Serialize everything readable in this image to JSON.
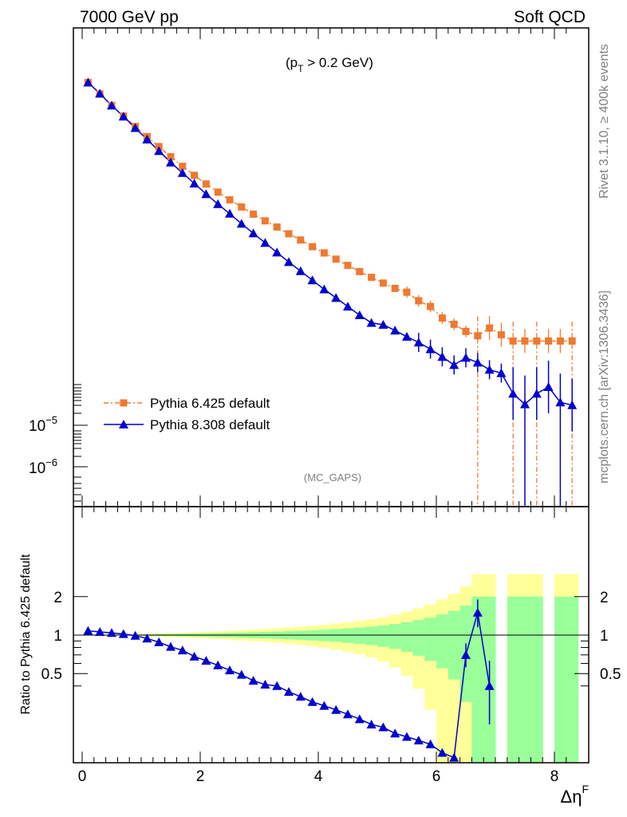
{
  "header": {
    "left": "7000 GeV pp",
    "right": "Soft QCD"
  },
  "side_labels": {
    "rivet": "Rivet 3.1.10, ≥ 400k events",
    "mcplots": "mcplots.cern.ch [arXiv:1306.3436]"
  },
  "top_panel": {
    "cut_label": "(p",
    "cut_sub": "T",
    "cut_rest": " > 0.2 GeV)",
    "watermark": "(MC_GAPS)",
    "y_tick_1": "10",
    "y_tick_1_exp": "−5",
    "y_tick_2": "10",
    "y_tick_2_exp": "−6"
  },
  "bottom_panel": {
    "ylabel": "Ratio to Pythia 6.425 default",
    "y_ticks": [
      "0.5",
      "1",
      "2"
    ],
    "x_ticks": [
      "0",
      "2",
      "4",
      "6",
      "8"
    ],
    "xlabel": "Δη",
    "xlabel_sup": "F"
  },
  "legend": {
    "series_0": "Pythia 6.425 default",
    "series_1": "Pythia 8.308 default"
  },
  "colors": {
    "pythia6": "#f07830",
    "pythia8": "#0000cc",
    "band_green": "#99ff99",
    "band_yellow": "#ffff99"
  },
  "chart_data": {
    "type": "line",
    "title": "",
    "xlabel": "Δη^F",
    "ylabel": "",
    "xlim": [
      -0.2,
      8.5
    ],
    "x": [
      0.1,
      0.3,
      0.5,
      0.7,
      0.9,
      1.1,
      1.3,
      1.5,
      1.7,
      1.9,
      2.1,
      2.3,
      2.5,
      2.7,
      2.9,
      3.1,
      3.3,
      3.5,
      3.7,
      3.9,
      4.1,
      4.3,
      4.5,
      4.7,
      4.9,
      5.1,
      5.3,
      5.5,
      5.7,
      5.9,
      6.1,
      6.3,
      6.5,
      6.7,
      6.9,
      7.1,
      7.3,
      7.5,
      7.7,
      7.9,
      8.1,
      8.3
    ],
    "series": [
      {
        "name": "Pythia 6.425 default",
        "relative_height": [
          0.886,
          0.862,
          0.838,
          0.816,
          0.794,
          0.773,
          0.752,
          0.731,
          0.711,
          0.692,
          0.674,
          0.657,
          0.641,
          0.626,
          0.611,
          0.597,
          0.584,
          0.57,
          0.557,
          0.543,
          0.53,
          0.517,
          0.504,
          0.491,
          0.479,
          0.467,
          0.456,
          0.448,
          0.43,
          0.418,
          0.394,
          0.381,
          0.366,
          0.357,
          0.373,
          0.359,
          0.346,
          0.346,
          0.346,
          0.346,
          0.346,
          0.346
        ],
        "ratio": [
          1.0,
          1.0,
          1.0,
          1.0,
          1.0,
          1.0,
          1.0,
          1.0,
          1.0,
          1.0,
          1.0,
          1.0,
          1.0,
          1.0,
          1.0,
          1.0,
          1.0,
          1.0,
          1.0,
          1.0,
          1.0,
          1.0,
          1.0,
          1.0,
          1.0,
          1.0,
          1.0,
          1.0,
          1.0,
          1.0,
          1.0,
          1.0,
          1.0,
          1.0,
          1.0,
          1.0,
          1.0,
          1.0,
          1.0,
          1.0,
          1.0,
          1.0
        ],
        "ratio_band_1sigma": [
          0.003,
          0.005,
          0.007,
          0.009,
          0.011,
          0.013,
          0.016,
          0.019,
          0.022,
          0.026,
          0.03,
          0.035,
          0.04,
          0.046,
          0.052,
          0.058,
          0.065,
          0.073,
          0.082,
          0.092,
          0.103,
          0.115,
          0.13,
          0.145,
          0.165,
          0.19,
          0.22,
          0.26,
          0.31,
          0.37,
          0.45,
          0.55,
          0.7,
          1.0,
          1.0,
          null,
          1.0,
          1.0,
          1.0,
          null,
          1.0,
          1.0
        ],
        "ratio_band_2sigma": [
          0.006,
          0.01,
          0.014,
          0.018,
          0.022,
          0.026,
          0.032,
          0.038,
          0.044,
          0.052,
          0.06,
          0.07,
          0.08,
          0.092,
          0.104,
          0.116,
          0.13,
          0.146,
          0.164,
          0.184,
          0.206,
          0.23,
          0.26,
          0.29,
          0.33,
          0.38,
          0.44,
          0.52,
          0.62,
          0.74,
          0.9,
          1.1,
          1.4,
          2.0,
          2.0,
          null,
          2.0,
          2.0,
          2.0,
          null,
          2.0,
          2.0
        ]
      },
      {
        "name": "Pythia 8.308 default",
        "relative_height": [
          0.886,
          0.863,
          0.838,
          0.815,
          0.791,
          0.767,
          0.743,
          0.719,
          0.697,
          0.675,
          0.653,
          0.632,
          0.612,
          0.591,
          0.571,
          0.551,
          0.531,
          0.511,
          0.492,
          0.473,
          0.454,
          0.436,
          0.418,
          0.4,
          0.384,
          0.38,
          0.368,
          0.355,
          0.343,
          0.329,
          0.313,
          0.296,
          0.311,
          0.301,
          0.286,
          0.279,
          0.236,
          0.214,
          0.236,
          0.25,
          0.218,
          0.212
        ],
        "ratio": [
          1.08,
          1.06,
          1.04,
          1.02,
          0.99,
          0.94,
          0.88,
          0.81,
          0.76,
          0.68,
          0.63,
          0.58,
          0.53,
          0.49,
          0.44,
          0.41,
          0.4,
          0.36,
          0.33,
          0.3,
          0.28,
          0.26,
          0.24,
          0.22,
          0.2,
          0.19,
          0.17,
          0.16,
          0.15,
          0.14,
          0.12,
          0.11,
          0.7,
          1.5,
          0.4,
          null,
          null,
          null,
          null,
          null,
          null,
          null
        ]
      }
    ]
  }
}
